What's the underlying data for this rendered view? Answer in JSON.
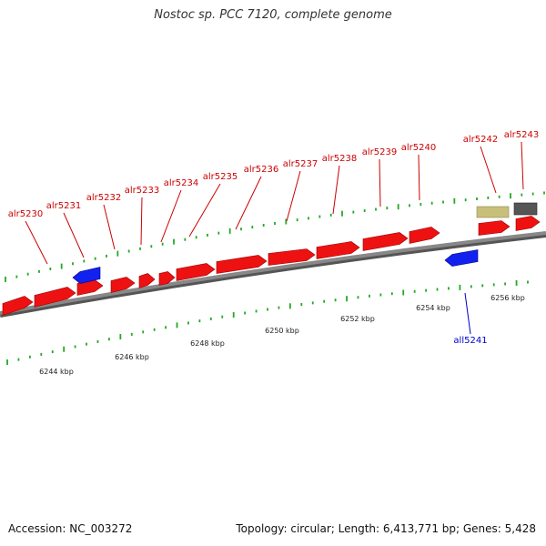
{
  "title": "Nostoc sp. PCC 7120, complete genome",
  "footer": {
    "accession": "Accession: NC_003272",
    "summary": "Topology: circular; Length: 6,413,771 bp; Genes: 5,428"
  },
  "colors": {
    "forward_gene": "#ee1111",
    "reverse_gene": "#1122ee",
    "forward_label": "#cc0000",
    "reverse_label": "#0000cc",
    "tick": "#22aa22",
    "backbone": "#888888",
    "feature_tan": "#c8bf7a",
    "feature_gray": "#555555"
  },
  "scale": {
    "unit": "kbp",
    "tick_labels": [
      "6244 kbp",
      "6246 kbp",
      "6248 kbp",
      "6250 kbp",
      "6252 kbp",
      "6254 kbp",
      "6256 kbp"
    ]
  },
  "genes": [
    {
      "name": "alr5230",
      "strand": "+"
    },
    {
      "name": "alr5231",
      "strand": "+"
    },
    {
      "name": "alr5232",
      "strand": "+"
    },
    {
      "name": "alr5233",
      "strand": "+"
    },
    {
      "name": "alr5234",
      "strand": "+"
    },
    {
      "name": "alr5235",
      "strand": "+"
    },
    {
      "name": "alr5236",
      "strand": "+"
    },
    {
      "name": "alr5237",
      "strand": "+"
    },
    {
      "name": "alr5238",
      "strand": "+"
    },
    {
      "name": "alr5239",
      "strand": "+"
    },
    {
      "name": "alr5240",
      "strand": "+"
    },
    {
      "name": "alr5242",
      "strand": "+"
    },
    {
      "name": "alr5243",
      "strand": "+"
    },
    {
      "name": "all5241",
      "strand": "-"
    }
  ]
}
